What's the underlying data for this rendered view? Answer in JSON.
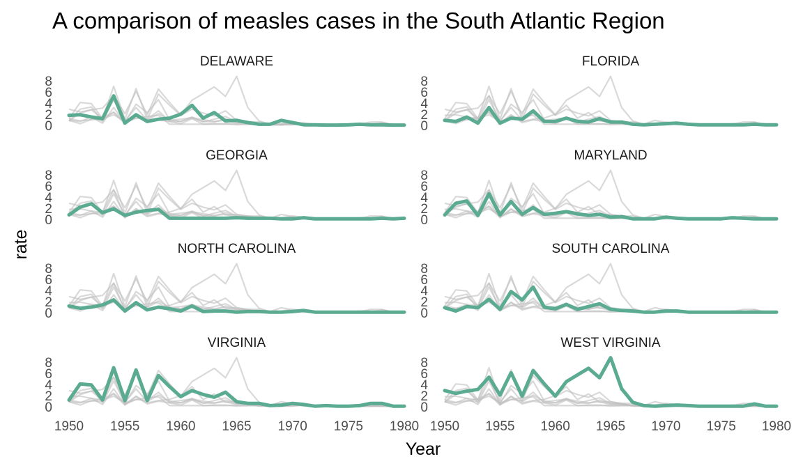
{
  "chart_data": {
    "type": "line",
    "title": "A comparison of measles cases in the South Atlantic Region",
    "xlabel": "Year",
    "ylabel": "rate",
    "xlim": [
      1950,
      1980
    ],
    "ylim": [
      0,
      9
    ],
    "x_ticks": [
      "1950",
      "1955",
      "1960",
      "1965",
      "1970",
      "1975",
      "1980"
    ],
    "y_ticks": [
      "0",
      "2",
      "4",
      "6",
      "8"
    ],
    "grid": false,
    "highlight_color": "#5aab91",
    "background_color": "#bfbfbf",
    "x": [
      1950,
      1951,
      1952,
      1953,
      1954,
      1955,
      1956,
      1957,
      1958,
      1959,
      1960,
      1961,
      1962,
      1963,
      1964,
      1965,
      1966,
      1967,
      1968,
      1969,
      1970,
      1971,
      1972,
      1973,
      1974,
      1975,
      1976,
      1977,
      1978,
      1979,
      1980
    ],
    "series": [
      {
        "name": "DELAWARE",
        "values": [
          1.8,
          1.9,
          1.5,
          1.2,
          5.3,
          0.4,
          1.9,
          0.7,
          1.1,
          1.3,
          2.0,
          3.6,
          1.3,
          2.3,
          0.8,
          0.9,
          0.5,
          0.2,
          0.2,
          0.9,
          0.5,
          0.1,
          0.1,
          0.05,
          0.05,
          0.1,
          0.2,
          0.1,
          0.1,
          0.05,
          0.05
        ]
      },
      {
        "name": "FLORIDA",
        "values": [
          0.9,
          0.7,
          1.5,
          0.4,
          3.2,
          0.4,
          1.3,
          1.1,
          2.6,
          0.7,
          0.7,
          1.3,
          0.7,
          0.6,
          1.2,
          0.6,
          0.6,
          0.2,
          0.1,
          0.2,
          0.3,
          0.4,
          0.2,
          0.1,
          0.1,
          0.1,
          0.1,
          0.1,
          0.2,
          0.1,
          0.1
        ]
      },
      {
        "name": "GEORGIA",
        "values": [
          0.8,
          2.2,
          2.8,
          1.2,
          1.9,
          0.7,
          1.3,
          1.6,
          1.8,
          0.2,
          0.2,
          0.2,
          0.2,
          0.2,
          0.2,
          0.3,
          0.2,
          0.2,
          0.2,
          0.1,
          0.1,
          0.3,
          0.1,
          0.1,
          0.1,
          0.1,
          0.1,
          0.1,
          0.2,
          0.1,
          0.2
        ]
      },
      {
        "name": "MARYLAND",
        "values": [
          0.8,
          2.9,
          3.3,
          0.7,
          4.6,
          0.8,
          3.2,
          0.9,
          2.1,
          0.9,
          1.1,
          1.4,
          1.0,
          0.7,
          0.9,
          0.4,
          0.5,
          0.1,
          0.1,
          0.1,
          0.4,
          0.2,
          0.1,
          0.1,
          0.1,
          0.1,
          0.3,
          0.2,
          0.1,
          0.1,
          0.1
        ]
      },
      {
        "name": "NORTH CAROLINA",
        "values": [
          1.2,
          0.8,
          1.0,
          1.4,
          2.3,
          0.3,
          1.8,
          0.5,
          1.0,
          0.7,
          0.3,
          1.2,
          0.2,
          0.3,
          0.3,
          0.1,
          0.2,
          0.2,
          0.1,
          0.1,
          0.2,
          0.4,
          0.1,
          0.1,
          0.1,
          0.1,
          0.1,
          0.1,
          0.1,
          0.1,
          0.1
        ]
      },
      {
        "name": "SOUTH CAROLINA",
        "values": [
          0.9,
          0.3,
          1.1,
          0.9,
          2.4,
          0.6,
          3.8,
          2.3,
          4.6,
          1.0,
          0.7,
          1.5,
          0.6,
          1.1,
          1.6,
          0.6,
          0.4,
          0.3,
          0.1,
          0.1,
          0.3,
          0.3,
          0.1,
          0.1,
          0.1,
          0.1,
          0.1,
          0.1,
          0.1,
          0.1,
          0.1
        ]
      },
      {
        "name": "VIRGINIA",
        "values": [
          1.2,
          4.1,
          3.9,
          1.2,
          7.0,
          1.1,
          6.6,
          1.1,
          5.6,
          3.6,
          1.8,
          2.9,
          2.2,
          1.7,
          2.6,
          0.9,
          0.6,
          0.6,
          0.2,
          0.3,
          0.6,
          0.4,
          0.1,
          0.2,
          0.1,
          0.1,
          0.2,
          0.6,
          0.6,
          0.1,
          0.1
        ]
      },
      {
        "name": "WEST VIRGINIA",
        "values": [
          2.9,
          2.4,
          2.8,
          3.1,
          5.3,
          2.1,
          6.1,
          1.9,
          6.5,
          4.1,
          1.9,
          4.5,
          5.7,
          6.9,
          5.2,
          8.8,
          3.2,
          0.8,
          0.2,
          0.1,
          0.2,
          0.3,
          0.2,
          0.1,
          0.1,
          0.1,
          0.1,
          0.1,
          0.5,
          0.1,
          0.1
        ]
      }
    ]
  }
}
